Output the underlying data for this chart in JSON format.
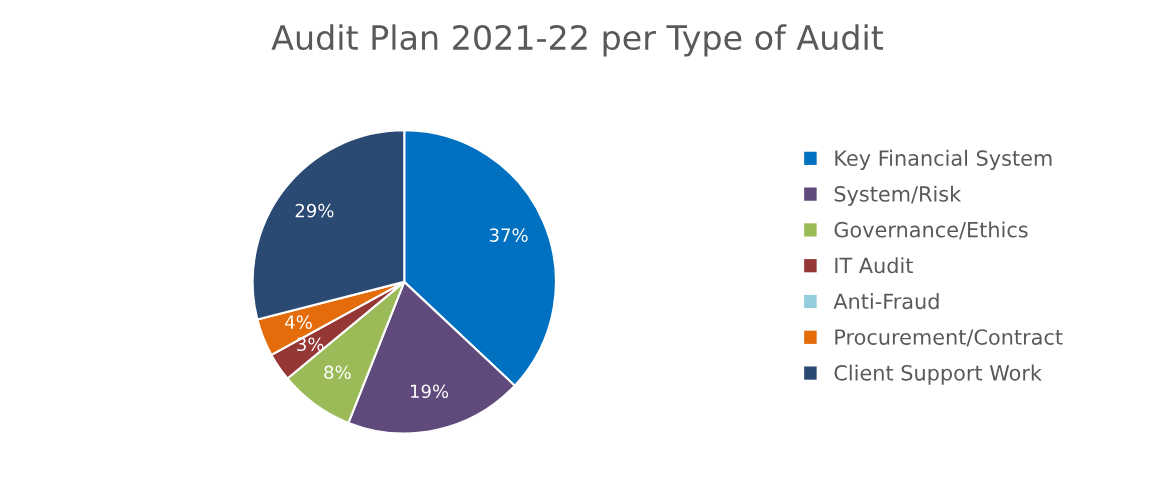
{
  "chart_data": {
    "type": "pie",
    "title": "Audit Plan 2021-22 per Type of Audit",
    "categories": [
      "Key Financial System",
      "System/Risk",
      "Governance/Ethics",
      "IT Audit",
      "Anti-Fraud",
      "Procurement/Contract",
      "Client Support Work"
    ],
    "values": [
      37,
      19,
      8,
      3,
      0,
      4,
      29
    ],
    "value_labels": [
      "37%",
      "19%",
      "8%",
      "3%",
      null,
      "4%",
      "29%"
    ],
    "colors": [
      "#0070c0",
      "#604a7b",
      "#9bbb59",
      "#953735",
      "#93cddd",
      "#e46c0a",
      "#2b4a73"
    ],
    "legend": "right"
  }
}
